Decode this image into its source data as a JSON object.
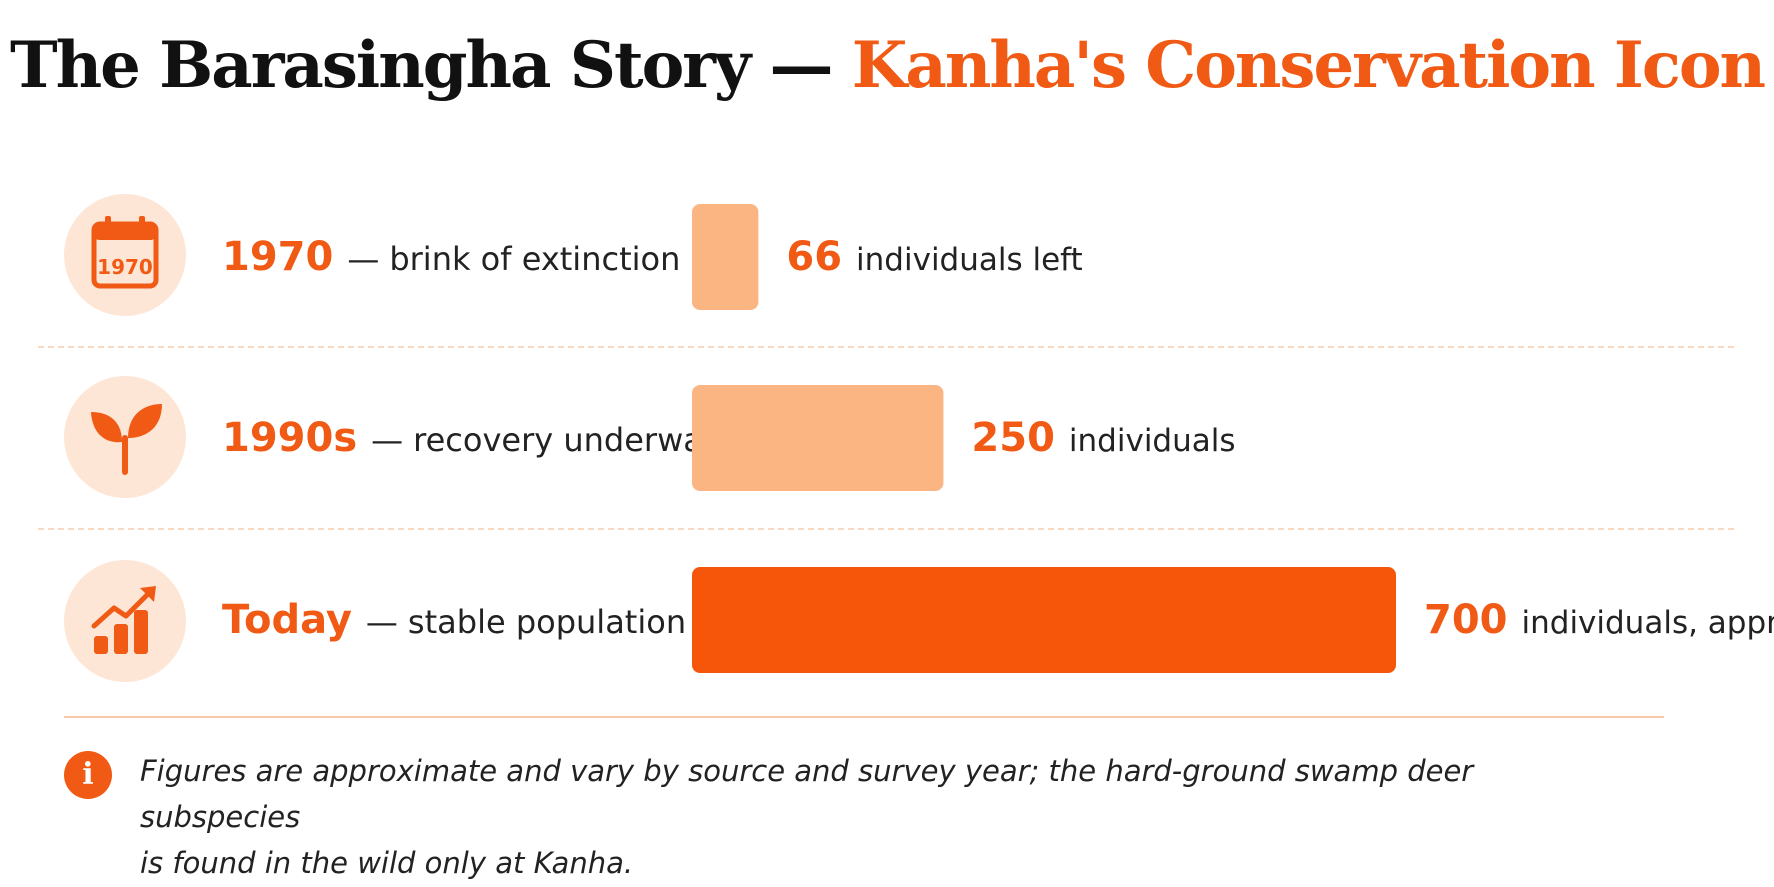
{
  "header": {
    "title_main": "The Barasingha Story",
    "title_dash": "—",
    "title_accent": "Kanha's Conservation Icon"
  },
  "chart_data": {
    "type": "bar",
    "orientation": "horizontal",
    "categories": [
      "1970",
      "1990s",
      "Today"
    ],
    "values": [
      66,
      250,
      700
    ],
    "rows": [
      {
        "era": "1970",
        "description": "brink of extinction",
        "value": "66",
        "value_note": "individuals left",
        "icon": "calendar-icon",
        "icon_text": "1970",
        "bar_color": "#fbb583"
      },
      {
        "era": "1990s",
        "description": "recovery underway",
        "value": "250",
        "value_note": "individuals",
        "icon": "sprout-icon",
        "bar_color": "#fbb583"
      },
      {
        "era": "Today",
        "description": "stable population",
        "value": "700",
        "value_note": "individuals, approx.",
        "icon": "growth-chart-icon",
        "bar_color": "#f5560a"
      }
    ],
    "title": "",
    "xlabel": "",
    "ylabel": "",
    "xlim": [
      0,
      700
    ],
    "grid": false,
    "legend": "none"
  },
  "colors": {
    "accent": "#f05a14",
    "bar_light": "#fbb583",
    "bar_dark": "#f5560a",
    "icon_bg": "#fde6d6"
  },
  "footer": {
    "info_icon": "info-icon",
    "note_line1": "Figures are approximate and vary by source and survey year; the hard-ground swamp deer subspecies",
    "note_line2": "is found in the wild only at Kanha."
  }
}
